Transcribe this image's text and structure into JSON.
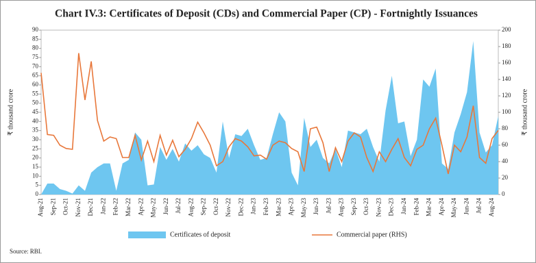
{
  "chart_data": {
    "type": "area-line",
    "title": "Chart IV.3: Certificates of Deposit (CDs) and Commercial Paper (CP) - Fortnightly Issuances",
    "ylabel": "₹ thousand crore",
    "y2label": "₹ thousand crore",
    "source": "Source: RBI.",
    "categories": [
      "Aug-21",
      null,
      "Sep-21",
      null,
      "Oct-21",
      null,
      "Nov-21",
      null,
      "Dec-21",
      null,
      "Jan-22",
      null,
      "Feb-22",
      null,
      "Mar-22",
      null,
      "Apr-22",
      null,
      "May-22",
      null,
      "Jun-22",
      null,
      "Jul-22",
      null,
      "Aug-22",
      null,
      "Sep-22",
      null,
      "Oct-22",
      null,
      "Nov-22",
      null,
      "Dec-22",
      null,
      "Jan-23",
      null,
      "Feb-23",
      null,
      "Mar-23",
      null,
      "Apr-23",
      null,
      "May-23",
      null,
      "Jun-23",
      null,
      "Jul-23",
      null,
      "Aug-23",
      null,
      "Sep-23",
      null,
      "Oct-23",
      null,
      "Nov-23",
      null,
      "Dec-23",
      null,
      "Jan-24",
      null,
      "Feb-24",
      null,
      "Mar-24",
      null,
      "Apr-24",
      null,
      "May-24",
      null,
      "Jun-24",
      null,
      "Jul-24",
      null,
      "Aug-24",
      null
    ],
    "series": [
      {
        "name": "Certificates of deposit",
        "kind": "area",
        "color": "#6ec6f0",
        "values": [
          0,
          6,
          6,
          3,
          2,
          0.5,
          5,
          2,
          12,
          15,
          17,
          17,
          2,
          17,
          19,
          34,
          30,
          5,
          5.5,
          26,
          19,
          25,
          18,
          28,
          24,
          27,
          22,
          20,
          12,
          40,
          20,
          33,
          32,
          36,
          27,
          19,
          20,
          33,
          45,
          40,
          12,
          5,
          42,
          26,
          30,
          20,
          17,
          25,
          15,
          35,
          34,
          33,
          36,
          26,
          18,
          46,
          65,
          39,
          40,
          21,
          30,
          63,
          59,
          69,
          17,
          14,
          34,
          44,
          56,
          84,
          34,
          23,
          27,
          43
        ]
      },
      {
        "name": "Commercial paper (RHS)",
        "kind": "line",
        "axis": "y2",
        "color": "#e8773a",
        "values": [
          148,
          73,
          72,
          60,
          56,
          55,
          172,
          115,
          162,
          90,
          65,
          70,
          68,
          45,
          45,
          72,
          42,
          65,
          40,
          72,
          48,
          66,
          46,
          55,
          68,
          88,
          75,
          60,
          35,
          40,
          58,
          68,
          65,
          58,
          47,
          48,
          43,
          60,
          65,
          63,
          56,
          52,
          28,
          80,
          82,
          63,
          28,
          57,
          40,
          65,
          75,
          70,
          45,
          28,
          52,
          40,
          55,
          68,
          45,
          35,
          55,
          60,
          80,
          93,
          60,
          25,
          60,
          52,
          70,
          108,
          45,
          38,
          68,
          78
        ]
      }
    ],
    "ylim": [
      0,
      90
    ],
    "yticks": [
      0,
      5,
      10,
      15,
      20,
      25,
      30,
      35,
      40,
      45,
      50,
      55,
      60,
      65,
      70,
      75,
      80,
      85,
      90
    ],
    "y2lim": [
      0,
      200
    ],
    "y2ticks": [
      0,
      20,
      40,
      60,
      80,
      100,
      120,
      140,
      160,
      180,
      200
    ]
  }
}
